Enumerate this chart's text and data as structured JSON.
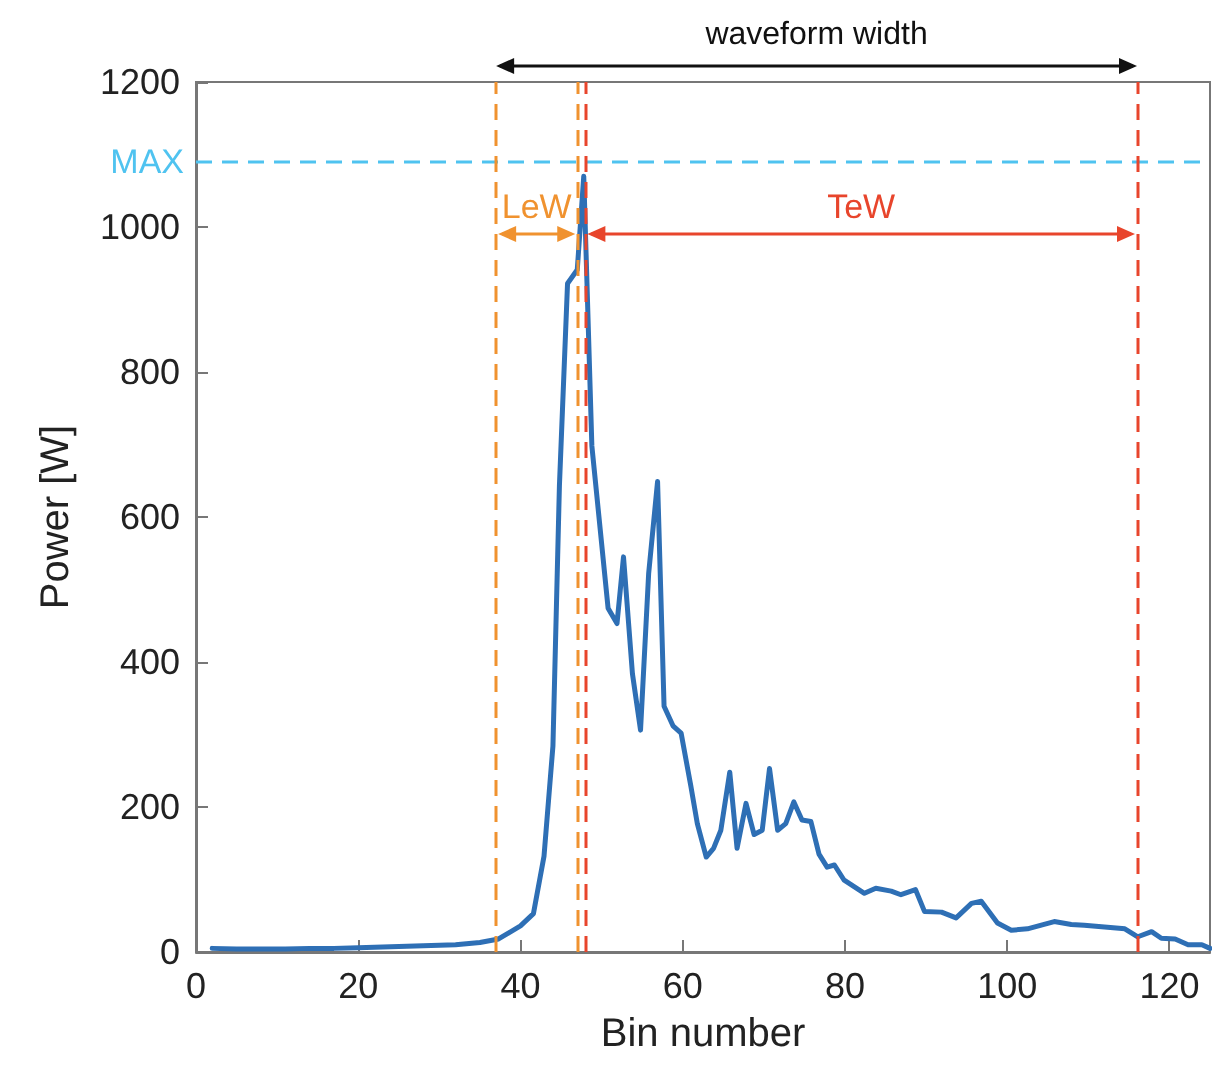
{
  "chart_data": {
    "type": "line",
    "xlabel": "Bin number",
    "ylabel": "Power [W]",
    "xlim": [
      0,
      125
    ],
    "xticks": [
      0,
      20,
      40,
      60,
      80,
      100,
      120
    ],
    "ylim": [
      0,
      1200
    ],
    "yticks": [
      0,
      200,
      400,
      600,
      800,
      1000,
      1200
    ],
    "grid": false,
    "marker": "none",
    "line_style": "solid",
    "series": [
      {
        "color": "#2e6fb5",
        "x": [
          2,
          5,
          8,
          11,
          14,
          17,
          20,
          23,
          26,
          29,
          32,
          35,
          37.3,
          40,
          41.6,
          42.9,
          44,
          44.8,
          45.8,
          47,
          47.8,
          48.8,
          50.8,
          51.9,
          52.7,
          53.8,
          54.8,
          55.8,
          56.9,
          57.7,
          58.8,
          59.8,
          61,
          61.8,
          62.9,
          63.8,
          64.7,
          65.8,
          66.7,
          67.8,
          68.8,
          69.8,
          70.7,
          71.7,
          72.7,
          73.7,
          74.7,
          75.8,
          76.8,
          77.8,
          78.7,
          79.9,
          82.4,
          83.8,
          85.7,
          86.9,
          88.7,
          89.8,
          91.9,
          93.7,
          95.6,
          96.8,
          98.8,
          100.5,
          102.5,
          105.8,
          107.9,
          109.5,
          114.5,
          116.1,
          117.8,
          119,
          120.7,
          122.3,
          124,
          125
        ],
        "values": [
          5,
          4,
          4,
          4,
          5,
          5,
          6,
          7,
          8,
          9,
          10,
          13,
          18,
          36,
          53,
          132,
          284,
          643,
          922,
          941,
          1070,
          698,
          474,
          453,
          545,
          384,
          306,
          522,
          649,
          339,
          312,
          302,
          229,
          177,
          131,
          143,
          168,
          248,
          143,
          205,
          162,
          168,
          253,
          168,
          177,
          207,
          182,
          180,
          135,
          117,
          120,
          99,
          81,
          88,
          84,
          79,
          86,
          56,
          55,
          47,
          67,
          70,
          40,
          30,
          32,
          42,
          38,
          37,
          32,
          21,
          28,
          19,
          18,
          10,
          10,
          5
        ]
      }
    ],
    "ref_lines": [
      {
        "axis": "y",
        "value": 1090,
        "label": "MAX",
        "color": "#4fc3f0",
        "line_style": "dashed"
      },
      {
        "axis": "x",
        "value": 37,
        "color": "#f0922f",
        "line_style": "dashed"
      },
      {
        "axis": "x",
        "value": 47,
        "color": "#f0922f",
        "line_style": "dashed"
      },
      {
        "axis": "x",
        "value": 48,
        "color": "#e8452c",
        "line_style": "dashed"
      },
      {
        "axis": "x",
        "value": 116,
        "color": "#e8452c",
        "line_style": "dashed"
      }
    ],
    "annotations": [
      "waveform width",
      "LeW",
      "TeW"
    ]
  }
}
